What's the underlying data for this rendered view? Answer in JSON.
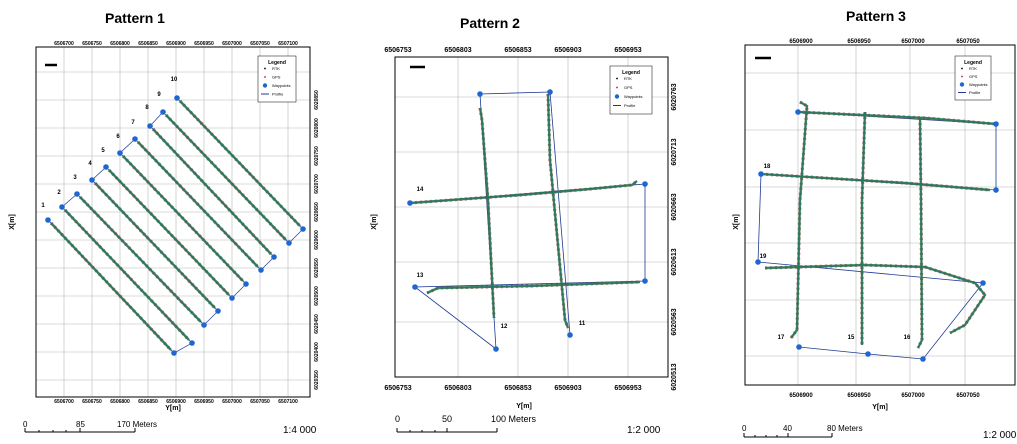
{
  "chart_data": [
    {
      "type": "line",
      "title": "Pattern 1",
      "xlabel": "Y[m]",
      "ylabel": "X[m]",
      "top_ticks": [
        "6506700",
        "6506750",
        "6506800",
        "6506850",
        "6506900",
        "6506950",
        "6507000",
        "6507050",
        "6507100"
      ],
      "bottom_ticks": [
        "6506700",
        "6506750",
        "6506800",
        "6506850",
        "6506900",
        "6506950",
        "6507000",
        "6507050",
        "6507100"
      ],
      "right_ticks": [
        "6020350",
        "6020400",
        "6020450",
        "6020500",
        "6020550",
        "6020600",
        "6020650",
        "6020700",
        "6020750",
        "6020800",
        "6020850"
      ],
      "pass_labels": [
        "1",
        "2",
        "3",
        "4",
        "5",
        "6",
        "7",
        "8",
        "9",
        "10"
      ],
      "legend": {
        "title": "Legend",
        "items": [
          "RTK",
          "GPS",
          "Waypoints",
          "Profile"
        ]
      },
      "scale_bar": {
        "labels": [
          "0",
          "85",
          "170 Meters"
        ]
      },
      "ratio": "1:4 000"
    },
    {
      "type": "line",
      "title": "Pattern 2",
      "xlabel": "Y[m]",
      "ylabel": "X[m]",
      "top_ticks": [
        "6506753",
        "6506803",
        "6506853",
        "6506903",
        "6506953"
      ],
      "bottom_ticks": [
        "6506753",
        "6506803",
        "6506853",
        "6506903",
        "6506953"
      ],
      "right_ticks": [
        "6020763",
        "6020713",
        "6020663",
        "6020613",
        "6020563",
        "6020513"
      ],
      "waypoint_labels": [
        "14",
        "13",
        "12",
        "11"
      ],
      "legend": {
        "title": "Legend",
        "items": [
          "RTK",
          "GPS",
          "Waypoints",
          "Profile"
        ]
      },
      "scale_bar": {
        "labels": [
          "0",
          "50",
          "100 Meters"
        ]
      },
      "ratio": "1:2 000"
    },
    {
      "type": "line",
      "title": "Pattern 3",
      "xlabel": "Y[m]",
      "ylabel": "X[m]",
      "top_ticks": [
        "6506900",
        "6506950",
        "6507000",
        "6507050"
      ],
      "bottom_ticks": [
        "6506900",
        "6506950",
        "6507000",
        "6507050"
      ],
      "waypoint_labels": [
        "18",
        "19",
        "17",
        "15",
        "16"
      ],
      "legend": {
        "title": "Legend",
        "items": [
          "RTK",
          "GPS",
          "Waypoints",
          "Profile"
        ]
      },
      "scale_bar": {
        "labels": [
          "0",
          "40",
          "80 Meters"
        ]
      },
      "ratio": "1:2 000"
    }
  ],
  "colors": {
    "rtk": "#2a7a5a",
    "gps": "#b3262e",
    "waypoint": "#1f66d1",
    "profile": "#1f3a93",
    "grid": "#b8b8b8"
  }
}
